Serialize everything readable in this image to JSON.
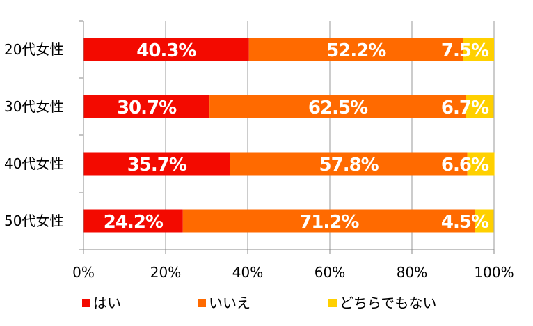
{
  "chart_data": {
    "type": "bar",
    "orientation": "horizontal",
    "stacked": true,
    "percent": true,
    "categories": [
      "20代女性",
      "30代女性",
      "40代女性",
      "50代女性"
    ],
    "series": [
      {
        "name": "はい",
        "values": [
          40.3,
          30.7,
          35.7,
          24.2
        ],
        "labels": [
          "40.3%",
          "30.7%",
          "35.7%",
          "24.2%"
        ],
        "color": "#f30a00"
      },
      {
        "name": "いいえ",
        "values": [
          52.2,
          62.5,
          57.8,
          71.2
        ],
        "labels": [
          "52.2%",
          "62.5%",
          "57.8%",
          "71.2%"
        ],
        "color": "#ff6a00"
      },
      {
        "name": "どちらでもない",
        "values": [
          7.5,
          6.7,
          6.6,
          4.5
        ],
        "labels": [
          "7.5%",
          "6.7%",
          "6.6%",
          "4.5%"
        ],
        "color": "#ffd000"
      }
    ],
    "xlim": [
      0,
      100
    ],
    "x_ticks": [
      "0%",
      "20%",
      "40%",
      "60%",
      "80%",
      "100%"
    ],
    "grid": true,
    "legend_position": "bottom"
  }
}
